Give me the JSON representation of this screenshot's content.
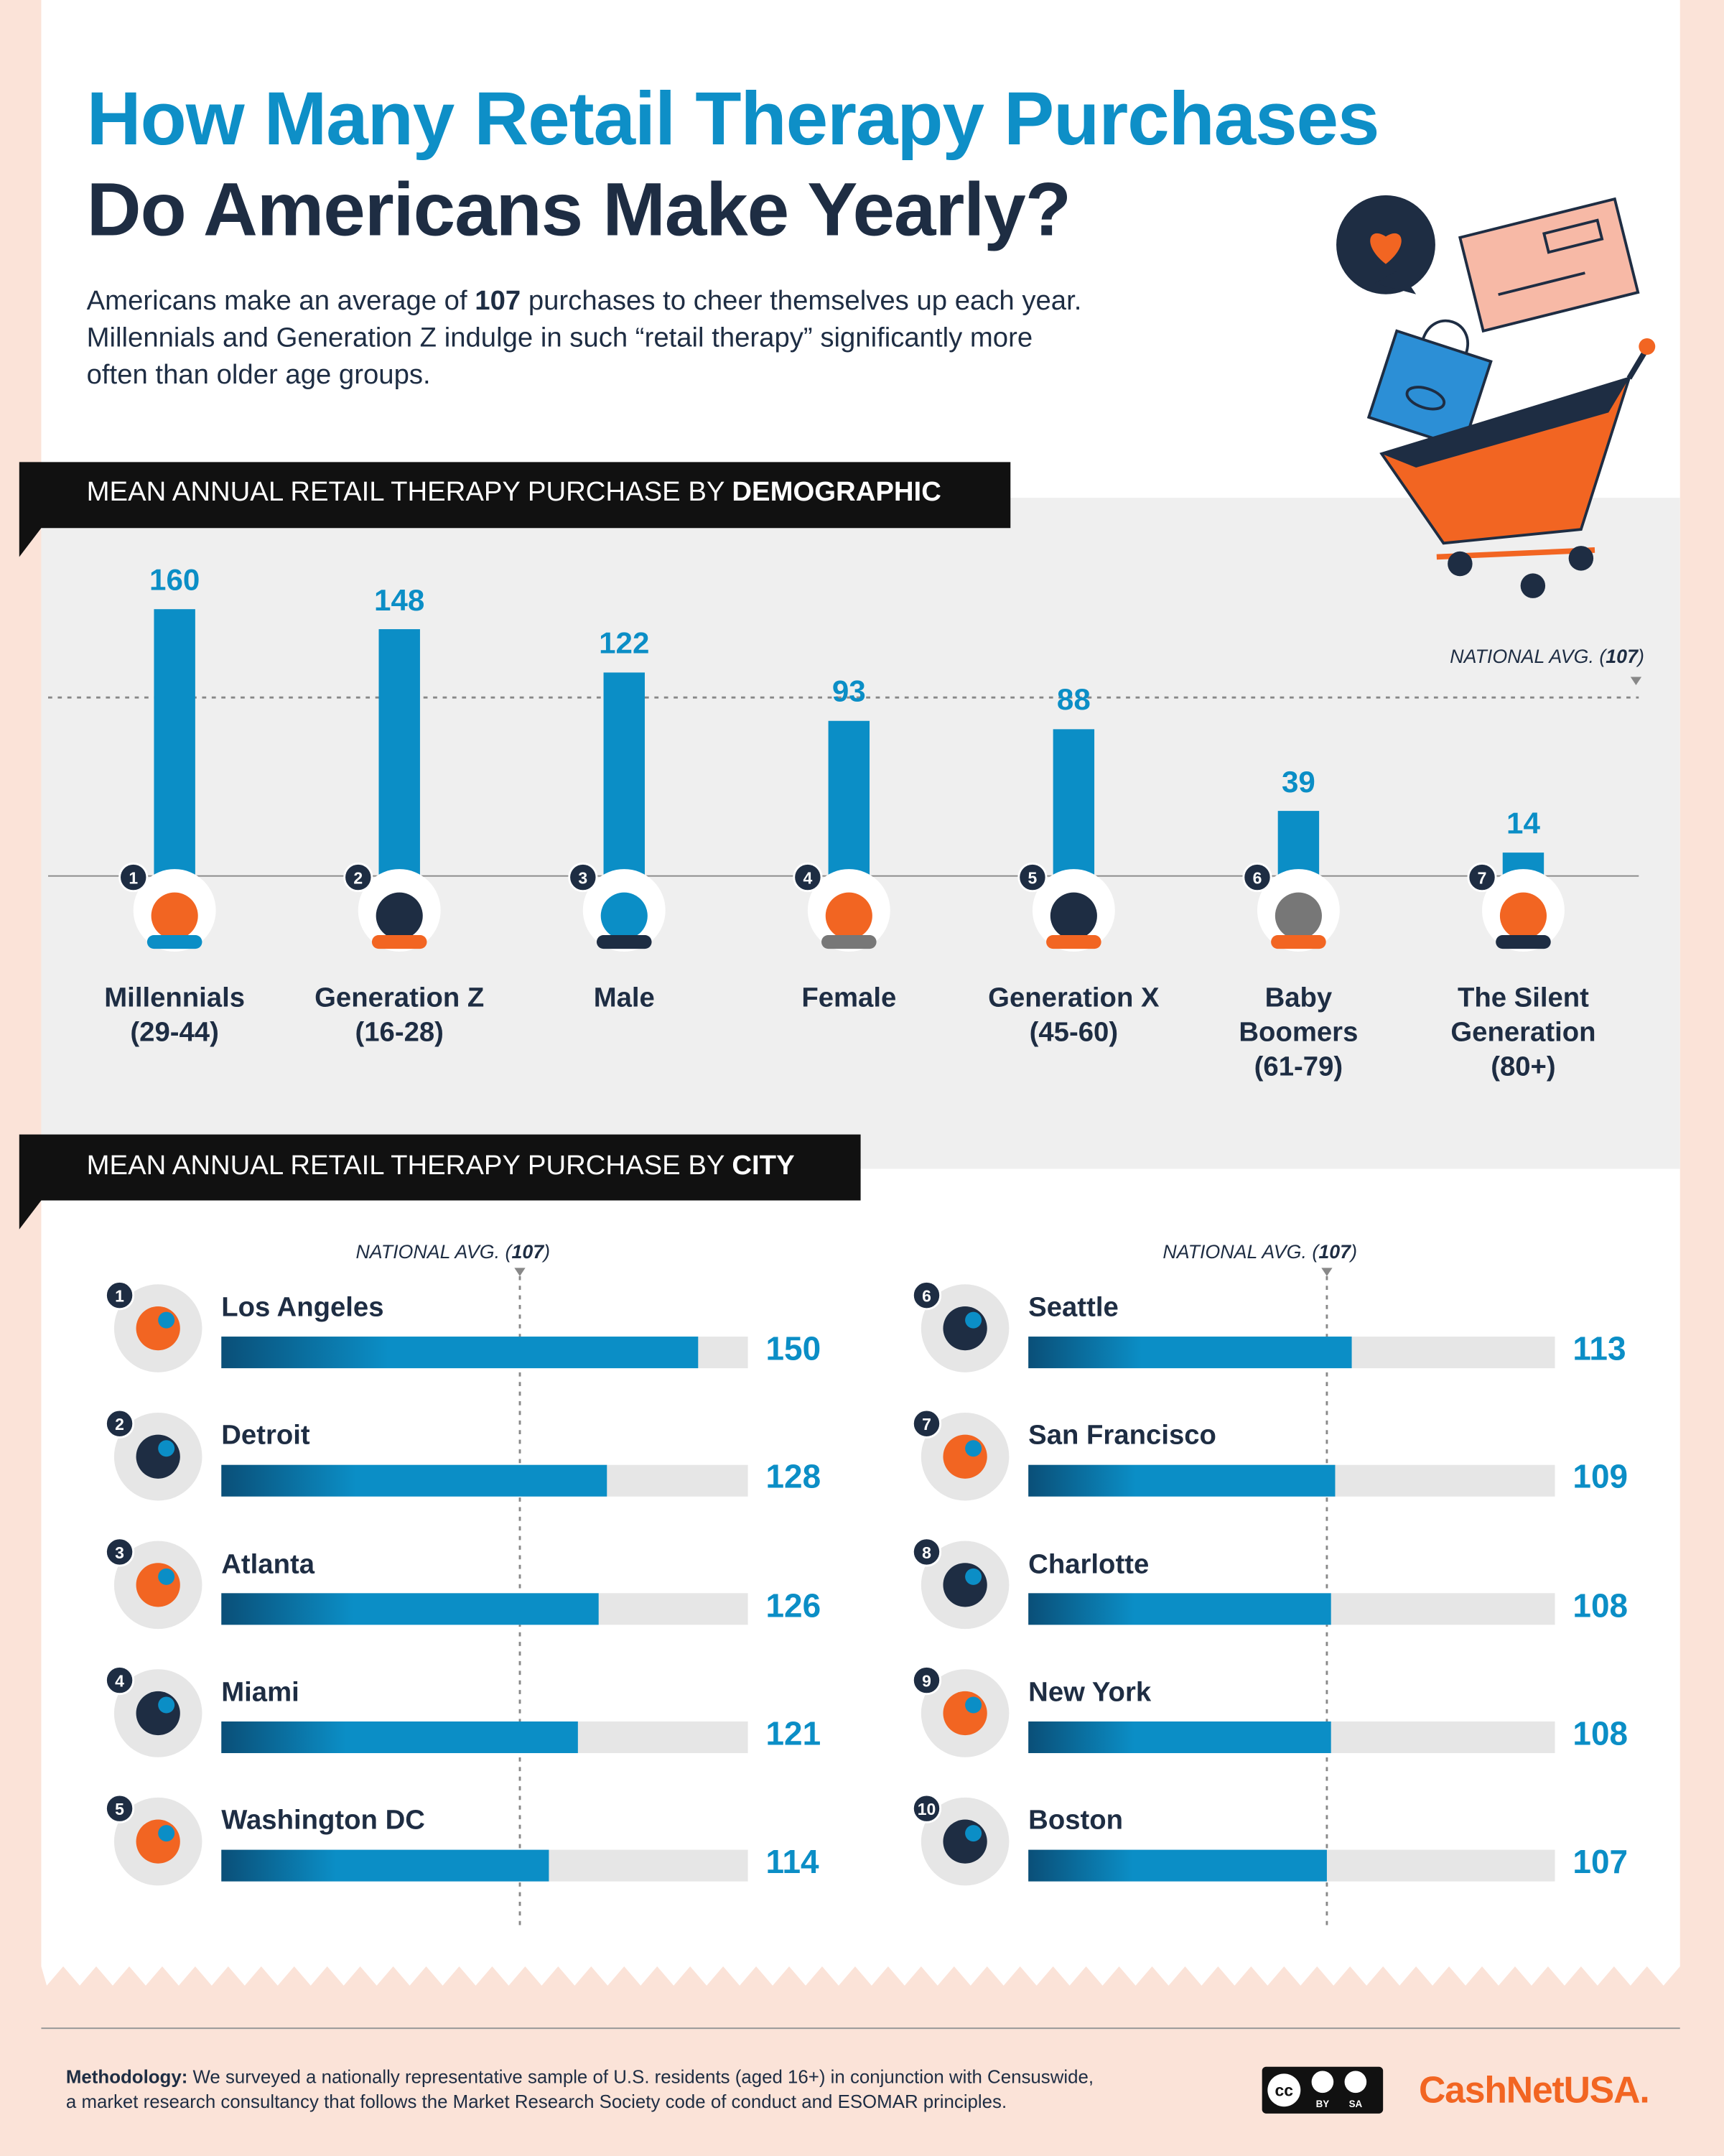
{
  "header": {
    "title_line1": "How Many Retail Therapy Purchases",
    "title_line2": "Do Americans Make Yearly?",
    "intro": [
      "Americans make an average of ",
      "107",
      " purchases to cheer themselves up each year.\nMillennials and Generation Z indulge in such “retail therapy” significantly more\noften than older age groups."
    ]
  },
  "chart_data": [
    {
      "type": "bar",
      "title": [
        "MEAN ANNUAL RETAIL THERAPY PURCHASE BY ",
        "DEMOGRAPHIC"
      ],
      "categories": [
        "Millennials\n(29-44)",
        "Generation Z\n(16-28)",
        "Male",
        "Female",
        "Generation X\n(45-60)",
        "Baby\nBoomers\n(61-79)",
        "The Silent\nGeneration\n(80+)"
      ],
      "rank_labels": [
        "1",
        "2",
        "3",
        "4",
        "5",
        "6",
        "7"
      ],
      "values": [
        160,
        148,
        122,
        93,
        88,
        39,
        14
      ],
      "color": "#0b8ec6",
      "ylim": [
        0,
        200
      ],
      "reference_line": {
        "value": 107,
        "label": [
          "NATIONAL AVG. (",
          "107",
          ")"
        ]
      }
    },
    {
      "type": "hbar",
      "title": [
        "MEAN ANNUAL RETAIL THERAPY PURCHASE BY ",
        "CITY"
      ],
      "categories": [
        "Los Angeles",
        "Detroit",
        "Atlanta",
        "Miami",
        "Washington DC",
        "Seattle",
        "San Francisco",
        "Charlotte",
        "New York",
        "Boston"
      ],
      "rank_labels": [
        "1",
        "2",
        "3",
        "4",
        "5",
        "6",
        "7",
        "8",
        "9",
        "10"
      ],
      "values": [
        150,
        128,
        126,
        121,
        114,
        113,
        109,
        108,
        108,
        107
      ],
      "color": "#0b8ec6",
      "track_color": "#e6e6e6",
      "xlim": [
        35,
        162
      ],
      "reference_line": {
        "value": 107,
        "label": [
          "NATIONAL AVG. (",
          "107",
          ")"
        ]
      }
    }
  ],
  "footer": {
    "methodology": [
      "Methodology:",
      " We surveyed a nationally representative sample of U.S. residents (aged 16+) in conjunction with Censuswide,\na market research consultancy that follows the Market Research Society code of conduct and ESOMAR principles."
    ],
    "license": [
      "cc",
      "BY",
      "SA"
    ],
    "brand": "CashNetUSA."
  }
}
